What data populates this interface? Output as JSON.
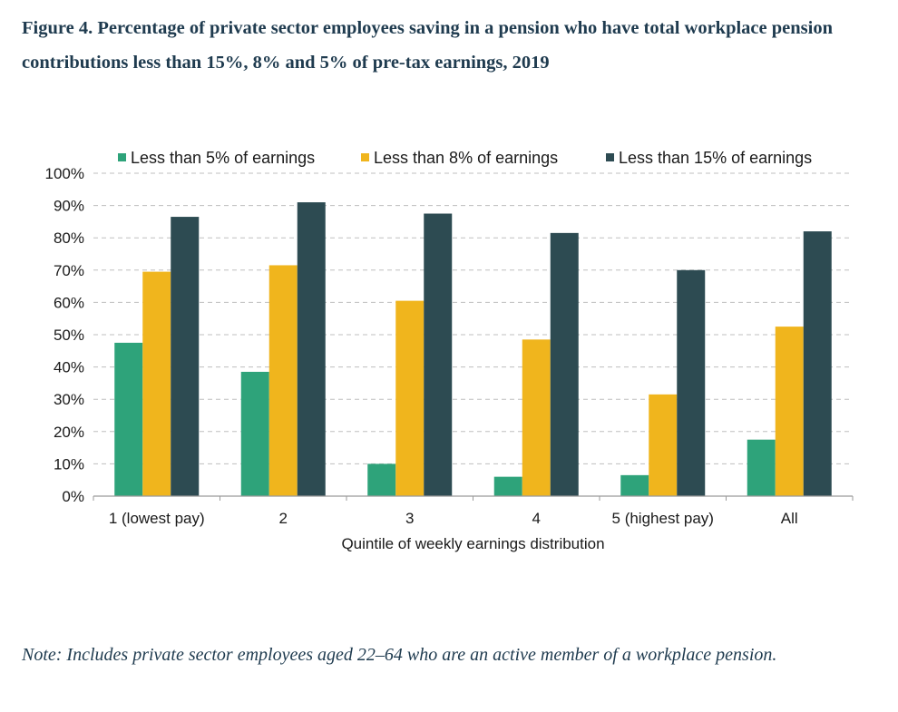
{
  "figure_title": "Figure 4. Percentage of private sector employees saving in a pension who have total workplace pension contributions less than 15%, 8% and 5% of pre-tax earnings, 2019",
  "note": "Note: Includes private sector employees aged 22–64 who are an active member of a workplace pension.",
  "colors": {
    "less_5": "#2ea37a",
    "less_8": "#f0b51d",
    "less_15": "#2d4b52",
    "grid": "#bfbfbf",
    "axis": "#9a9a9a"
  },
  "chart_data": {
    "type": "bar",
    "title": "",
    "xlabel": "Quintile of weekly earnings distribution",
    "ylabel": "",
    "ylim": [
      0,
      100
    ],
    "yticks": [
      "0%",
      "10%",
      "20%",
      "30%",
      "40%",
      "50%",
      "60%",
      "70%",
      "80%",
      "90%",
      "100%"
    ],
    "grid": true,
    "legend_position": "top",
    "categories": [
      "1 (lowest pay)",
      "2",
      "3",
      "4",
      "5 (highest pay)",
      "All"
    ],
    "series": [
      {
        "name": "Less than 5% of earnings",
        "color": "#2ea37a",
        "values": [
          47.5,
          38.5,
          10,
          6,
          6.5,
          17.5
        ]
      },
      {
        "name": "Less than 8% of earnings",
        "color": "#f0b51d",
        "values": [
          69.5,
          71.5,
          60.5,
          48.5,
          31.5,
          52.5
        ]
      },
      {
        "name": "Less than 15% of earnings",
        "color": "#2d4b52",
        "values": [
          86.5,
          91,
          87.5,
          81.5,
          70,
          82
        ]
      }
    ]
  }
}
